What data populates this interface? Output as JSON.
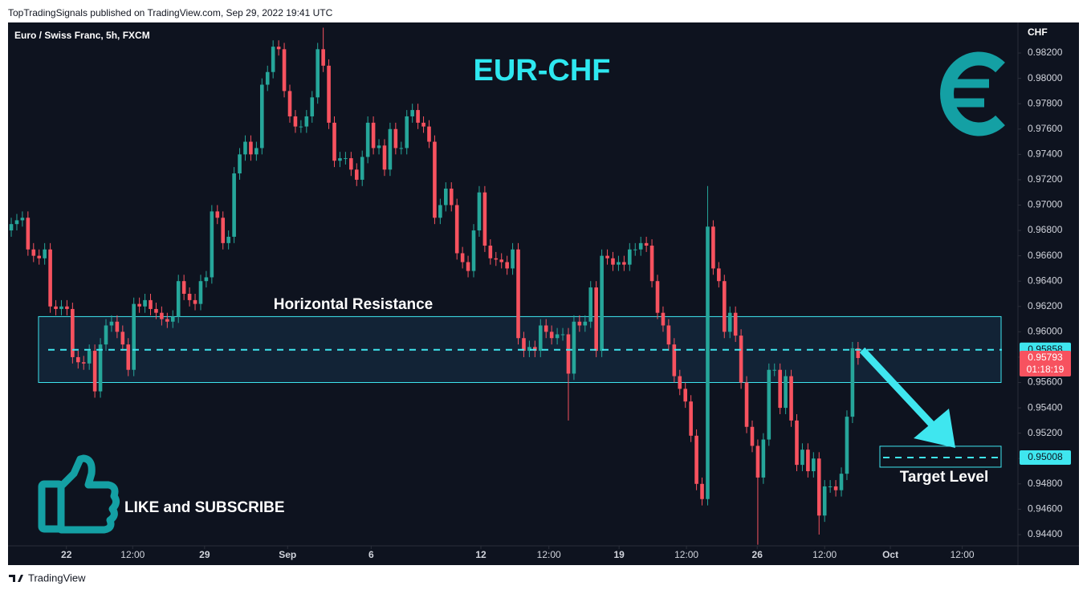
{
  "header": {
    "publisher": "TopTradingSignals published on TradingView.com, Sep 29, 2022 19:41 UTC"
  },
  "footer": {
    "brand": "TradingView"
  },
  "callout": "LIKE and SUBSCRIBE",
  "chart_data": {
    "type": "candlestick",
    "symbol": "Euro / Swiss Franc, 5h, FXCM",
    "title": "EUR-CHF",
    "y_axis_label": "CHF",
    "up_color": "#26a69a",
    "down_color": "#f7525f",
    "open": [
      0.968,
      0.9685,
      0.9688,
      0.969,
      0.9665,
      0.966,
      0.9658,
      0.9665,
      0.962,
      0.9618,
      0.962,
      0.9618,
      0.958,
      0.9576,
      0.9575,
      0.9585,
      0.9553,
      0.959,
      0.9605,
      0.9608,
      0.96,
      0.959,
      0.957,
      0.9622,
      0.962,
      0.9625,
      0.9618,
      0.9615,
      0.961,
      0.9608,
      0.9612,
      0.964,
      0.963,
      0.9625,
      0.9622,
      0.964,
      0.9643,
      0.9695,
      0.969,
      0.967,
      0.9675,
      0.9725,
      0.974,
      0.975,
      0.974,
      0.9745,
      0.9795,
      0.9805,
      0.9825,
      0.9823,
      0.979,
      0.977,
      0.9762,
      0.9762,
      0.977,
      0.9785,
      0.9823,
      0.981,
      0.9765,
      0.9735,
      0.9737,
      0.9737,
      0.9728,
      0.972,
      0.9738,
      0.9765,
      0.9745,
      0.9747,
      0.9728,
      0.976,
      0.9745,
      0.9745,
      0.977,
      0.9775,
      0.9765,
      0.9762,
      0.975,
      0.969,
      0.97,
      0.9713,
      0.97,
      0.9662,
      0.9655,
      0.9648,
      0.968,
      0.971,
      0.9668,
      0.9658,
      0.9657,
      0.9655,
      0.965,
      0.9665,
      0.9595,
      0.9585,
      0.9588,
      0.9585,
      0.9605,
      0.96,
      0.9595,
      0.9598,
      0.9598,
      0.9567,
      0.9608,
      0.9605,
      0.9608,
      0.9635,
      0.9585,
      0.966,
      0.9658,
      0.9653,
      0.9655,
      0.9653,
      0.9665,
      0.9665,
      0.967,
      0.9668,
      0.964,
      0.9615,
      0.9605,
      0.959,
      0.9565,
      0.9555,
      0.9545,
      0.9518,
      0.948,
      0.9468,
      0.9683,
      0.965,
      0.964,
      0.96,
      0.9615,
      0.9597,
      0.956,
      0.9525,
      0.951,
      0.9485,
      0.9515,
      0.957,
      0.957,
      0.954,
      0.9565,
      0.953,
      0.9495,
      0.9507,
      0.949,
      0.95,
      0.9455,
      0.9478,
      0.9478,
      0.9475,
      0.9488,
      0.9533,
      0.9587
    ],
    "high": [
      0.969,
      0.9693,
      0.9695,
      0.9695,
      0.967,
      0.9665,
      0.967,
      0.967,
      0.9625,
      0.9625,
      0.9625,
      0.9623,
      0.9585,
      0.9581,
      0.959,
      0.959,
      0.9595,
      0.961,
      0.9613,
      0.9613,
      0.9605,
      0.9595,
      0.9627,
      0.9627,
      0.963,
      0.963,
      0.9623,
      0.962,
      0.9615,
      0.9617,
      0.9645,
      0.9645,
      0.9635,
      0.963,
      0.9645,
      0.9648,
      0.97,
      0.97,
      0.9695,
      0.968,
      0.973,
      0.9745,
      0.9755,
      0.9755,
      0.975,
      0.98,
      0.981,
      0.983,
      0.983,
      0.9828,
      0.9795,
      0.9775,
      0.9767,
      0.9775,
      0.979,
      0.9828,
      0.984,
      0.9815,
      0.977,
      0.9742,
      0.9742,
      0.9742,
      0.9733,
      0.9743,
      0.977,
      0.977,
      0.9752,
      0.9752,
      0.9765,
      0.9765,
      0.975,
      0.9775,
      0.978,
      0.978,
      0.977,
      0.9767,
      0.9755,
      0.9705,
      0.9718,
      0.9718,
      0.9705,
      0.9667,
      0.966,
      0.9685,
      0.9715,
      0.9715,
      0.9673,
      0.9663,
      0.9662,
      0.966,
      0.967,
      0.967,
      0.96,
      0.9593,
      0.9593,
      0.961,
      0.961,
      0.9605,
      0.9603,
      0.9603,
      0.9603,
      0.9613,
      0.9613,
      0.9613,
      0.964,
      0.964,
      0.9665,
      0.9665,
      0.9663,
      0.966,
      0.966,
      0.967,
      0.967,
      0.9675,
      0.9675,
      0.9673,
      0.9645,
      0.962,
      0.961,
      0.9595,
      0.957,
      0.956,
      0.955,
      0.9523,
      0.9485,
      0.9715,
      0.9688,
      0.9655,
      0.9645,
      0.962,
      0.962,
      0.9602,
      0.9565,
      0.953,
      0.9515,
      0.952,
      0.9575,
      0.9575,
      0.9575,
      0.957,
      0.957,
      0.9535,
      0.9512,
      0.9512,
      0.9505,
      0.9505,
      0.9483,
      0.9483,
      0.9483,
      0.9493,
      0.9538,
      0.9592,
      0.9592
    ],
    "low": [
      0.9675,
      0.968,
      0.9683,
      0.966,
      0.9655,
      0.9653,
      0.9653,
      0.9615,
      0.9613,
      0.9613,
      0.9613,
      0.9575,
      0.9571,
      0.957,
      0.957,
      0.9548,
      0.9548,
      0.9585,
      0.96,
      0.9595,
      0.9585,
      0.9565,
      0.9565,
      0.9615,
      0.9615,
      0.9613,
      0.961,
      0.9605,
      0.9603,
      0.9603,
      0.9607,
      0.9625,
      0.962,
      0.9617,
      0.9617,
      0.9635,
      0.9638,
      0.9685,
      0.9665,
      0.9665,
      0.967,
      0.972,
      0.9735,
      0.9735,
      0.9735,
      0.974,
      0.979,
      0.98,
      0.9818,
      0.9785,
      0.9765,
      0.9757,
      0.9757,
      0.9757,
      0.9765,
      0.978,
      0.9805,
      0.976,
      0.973,
      0.973,
      0.9732,
      0.9723,
      0.9715,
      0.9715,
      0.9733,
      0.974,
      0.974,
      0.9723,
      0.9723,
      0.974,
      0.974,
      0.974,
      0.9765,
      0.976,
      0.9757,
      0.9745,
      0.9685,
      0.9685,
      0.9695,
      0.9695,
      0.9657,
      0.965,
      0.9643,
      0.9643,
      0.9675,
      0.9663,
      0.9653,
      0.9652,
      0.965,
      0.9645,
      0.9645,
      0.959,
      0.958,
      0.958,
      0.958,
      0.958,
      0.9595,
      0.959,
      0.959,
      0.9593,
      0.953,
      0.9562,
      0.96,
      0.96,
      0.9603,
      0.958,
      0.958,
      0.9653,
      0.9648,
      0.9648,
      0.9648,
      0.9648,
      0.966,
      0.966,
      0.9663,
      0.9635,
      0.961,
      0.96,
      0.9585,
      0.956,
      0.955,
      0.954,
      0.9513,
      0.9475,
      0.9463,
      0.9463,
      0.9645,
      0.9635,
      0.9595,
      0.9595,
      0.9592,
      0.9555,
      0.952,
      0.9505,
      0.9432,
      0.948,
      0.951,
      0.9565,
      0.9535,
      0.9535,
      0.9525,
      0.949,
      0.949,
      0.9485,
      0.9485,
      0.944,
      0.945,
      0.9473,
      0.947,
      0.947,
      0.9483,
      0.9528,
      0.9574
    ],
    "close": [
      0.9685,
      0.9688,
      0.969,
      0.9665,
      0.966,
      0.9658,
      0.9665,
      0.962,
      0.9618,
      0.962,
      0.9618,
      0.958,
      0.9576,
      0.9575,
      0.9585,
      0.9553,
      0.959,
      0.9605,
      0.9608,
      0.96,
      0.959,
      0.957,
      0.9622,
      0.962,
      0.9625,
      0.9618,
      0.9615,
      0.961,
      0.9608,
      0.9612,
      0.964,
      0.963,
      0.9625,
      0.9622,
      0.964,
      0.9643,
      0.9695,
      0.969,
      0.967,
      0.9675,
      0.9725,
      0.974,
      0.975,
      0.974,
      0.9745,
      0.9795,
      0.9805,
      0.9825,
      0.9823,
      0.979,
      0.977,
      0.9762,
      0.9762,
      0.977,
      0.9785,
      0.9823,
      0.981,
      0.9765,
      0.9735,
      0.9737,
      0.9737,
      0.9728,
      0.972,
      0.9738,
      0.9765,
      0.9745,
      0.9747,
      0.9728,
      0.976,
      0.9745,
      0.9745,
      0.977,
      0.9775,
      0.9765,
      0.9762,
      0.975,
      0.969,
      0.97,
      0.9713,
      0.97,
      0.9662,
      0.9655,
      0.9648,
      0.968,
      0.971,
      0.9668,
      0.9658,
      0.9657,
      0.9655,
      0.965,
      0.9665,
      0.9595,
      0.9585,
      0.9588,
      0.9585,
      0.9605,
      0.96,
      0.9595,
      0.9598,
      0.9598,
      0.9567,
      0.9608,
      0.9605,
      0.9608,
      0.9635,
      0.9585,
      0.966,
      0.9658,
      0.9653,
      0.9655,
      0.9653,
      0.9665,
      0.9665,
      0.967,
      0.9668,
      0.964,
      0.9615,
      0.9605,
      0.959,
      0.9565,
      0.9555,
      0.9545,
      0.9518,
      0.948,
      0.9468,
      0.9683,
      0.965,
      0.964,
      0.96,
      0.9615,
      0.9597,
      0.956,
      0.9525,
      0.951,
      0.9485,
      0.9515,
      0.957,
      0.957,
      0.954,
      0.9565,
      0.953,
      0.9495,
      0.9507,
      0.949,
      0.95,
      0.9455,
      0.9478,
      0.9478,
      0.9475,
      0.9488,
      0.9533,
      0.9587,
      0.95793
    ],
    "xlim": [
      -0.58,
      180.7
    ],
    "xticks": [
      {
        "value": 9.9,
        "label": "22"
      },
      {
        "value": 21.8,
        "label": "12:00"
      },
      {
        "value": 34.7,
        "label": "29"
      },
      {
        "value": 49.6,
        "label": "Sep"
      },
      {
        "value": 64.6,
        "label": "6"
      },
      {
        "value": 84.3,
        "label": "12"
      },
      {
        "value": 96.5,
        "label": "12:00"
      },
      {
        "value": 109.1,
        "label": "19"
      },
      {
        "value": 121.2,
        "label": "12:00"
      },
      {
        "value": 133.9,
        "label": "26"
      },
      {
        "value": 146.0,
        "label": "12:00"
      },
      {
        "value": 157.8,
        "label": "Oct"
      },
      {
        "value": 170.7,
        "label": "12:00"
      }
    ],
    "ylim": [
      0.94311,
      0.98441
    ],
    "yticks": [
      {
        "value": 0.944,
        "label": "0.94400"
      },
      {
        "value": 0.946,
        "label": "0.94600"
      },
      {
        "value": 0.948,
        "label": "0.94800"
      },
      {
        "value": 0.95,
        "label": "0.95000"
      },
      {
        "value": 0.952,
        "label": "0.95200"
      },
      {
        "value": 0.954,
        "label": "0.95400"
      },
      {
        "value": 0.956,
        "label": "0.95600"
      },
      {
        "value": 0.958,
        "label": "0.95800"
      },
      {
        "value": 0.96,
        "label": "0.96000"
      },
      {
        "value": 0.962,
        "label": "0.96200"
      },
      {
        "value": 0.964,
        "label": "0.96400"
      },
      {
        "value": 0.966,
        "label": "0.96600"
      },
      {
        "value": 0.968,
        "label": "0.96800"
      },
      {
        "value": 0.97,
        "label": "0.97000"
      },
      {
        "value": 0.972,
        "label": "0.97200"
      },
      {
        "value": 0.974,
        "label": "0.97400"
      },
      {
        "value": 0.976,
        "label": "0.97600"
      },
      {
        "value": 0.978,
        "label": "0.97800"
      },
      {
        "value": 0.98,
        "label": "0.98000"
      },
      {
        "value": 0.982,
        "label": "0.98200"
      }
    ],
    "grid": false,
    "level_color": "#3fe6ef",
    "resistance": {
      "label": "Horizontal Resistance",
      "level": 0.95858,
      "zone": [
        0.956,
        0.9612
      ]
    },
    "target": {
      "label": "Target Level",
      "level": 0.95008,
      "zone": [
        0.94932,
        0.95097
      ]
    },
    "last_price": {
      "value": 0.95793,
      "countdown": "01:18:19"
    }
  }
}
